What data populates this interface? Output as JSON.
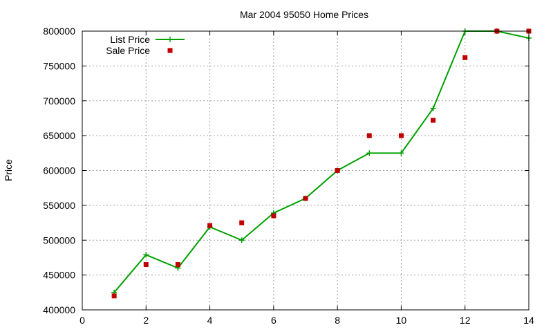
{
  "chart_data": {
    "type": "line",
    "title": "Mar 2004 95050 Home Prices",
    "xlabel": "",
    "ylabel": "Price",
    "xlim": [
      0,
      14
    ],
    "ylim": [
      400000,
      800000
    ],
    "xticks": [
      0,
      2,
      4,
      6,
      8,
      10,
      12,
      14
    ],
    "yticks": [
      400000,
      450000,
      500000,
      550000,
      600000,
      650000,
      700000,
      750000,
      800000
    ],
    "grid": true,
    "legend_position": "top-left",
    "series": [
      {
        "name": "List Price",
        "style": "line-with-plus-markers",
        "color": "#00a000",
        "x": [
          1,
          2,
          3,
          4,
          5,
          6,
          7,
          8,
          9,
          10,
          11,
          12,
          13,
          14
        ],
        "y": [
          425000,
          479000,
          460000,
          519000,
          500000,
          539000,
          560000,
          600000,
          625000,
          625000,
          689000,
          800000,
          800000,
          790000
        ]
      },
      {
        "name": "Sale Price",
        "style": "square-markers",
        "color": "#c00000",
        "x": [
          1,
          2,
          3,
          4,
          5,
          6,
          7,
          8,
          9,
          10,
          11,
          12,
          13,
          14
        ],
        "y": [
          420000,
          465000,
          465000,
          521000,
          525000,
          535000,
          560000,
          600000,
          650000,
          650000,
          672000,
          762000,
          800000,
          800000
        ]
      }
    ]
  }
}
